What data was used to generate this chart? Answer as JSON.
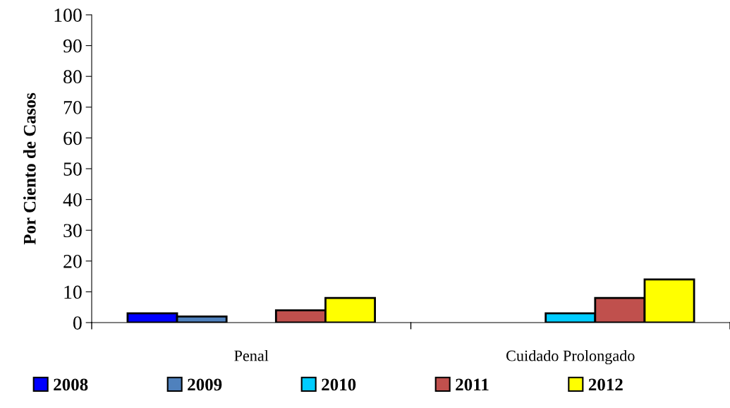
{
  "chart_data": {
    "type": "bar",
    "ylabel": "Por Ciento de Casos",
    "categories": [
      "Penal",
      "Cuidado Prolongado"
    ],
    "series": [
      {
        "name": "2008",
        "color": "#0000ff",
        "values": [
          3,
          null
        ]
      },
      {
        "name": "2009",
        "color": "#4f81bd",
        "values": [
          2,
          null
        ]
      },
      {
        "name": "2010",
        "color": "#00ccff",
        "values": [
          null,
          3
        ]
      },
      {
        "name": "2011",
        "color": "#c0504d",
        "values": [
          4,
          8
        ]
      },
      {
        "name": "2012",
        "color": "#ffff00",
        "values": [
          8,
          14
        ]
      }
    ],
    "ylim": [
      0,
      100
    ],
    "yticks": [
      0,
      10,
      20,
      30,
      40,
      50,
      60,
      70,
      80,
      90,
      100
    ],
    "grid": false,
    "legend": "bottom"
  }
}
